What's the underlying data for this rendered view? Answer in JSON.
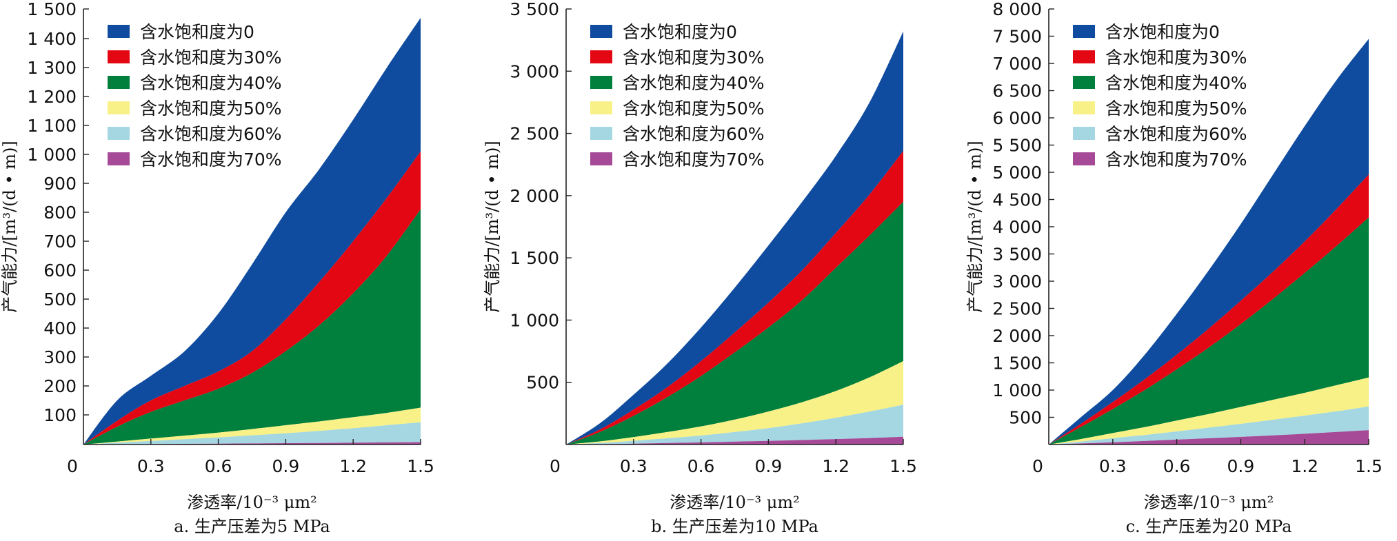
{
  "colors": {
    "series": [
      "#0f4b9e",
      "#e30613",
      "#007f3d",
      "#f7f187",
      "#a4d7e1",
      "#a64a97"
    ]
  },
  "chart_data": [
    {
      "type": "area",
      "caption": "a. 生产压差为5 MPa",
      "xlabel": "渗透率/10⁻³ μm²",
      "ylabel": "产气能力/[m³/(d • m)]",
      "xlim": [
        0,
        1.5
      ],
      "x_ticks": [
        0,
        0.3,
        0.6,
        0.9,
        1.2,
        1.5
      ],
      "x_tick_labels": [
        "0",
        "0.3",
        "0.6",
        "0.9",
        "1.2",
        "1.5"
      ],
      "ylim": [
        0,
        1500
      ],
      "y_scale": "piecewise-linear",
      "y_ticks": [
        100,
        200,
        300,
        400,
        500,
        600,
        700,
        800,
        900,
        1000,
        1100,
        1200,
        1300,
        1400,
        1500
      ],
      "y_tick_labels": [
        "100",
        "200",
        "300",
        "400",
        "500",
        "600",
        "700",
        "800",
        "900",
        "1 000",
        "1 100",
        "1 200",
        "1 300",
        "1 400",
        "1 500"
      ],
      "legend_position": "top-left",
      "grid": false,
      "x": [
        0,
        0.15,
        0.3,
        0.45,
        0.6,
        0.75,
        0.9,
        1.05,
        1.2,
        1.35,
        1.5
      ],
      "series": [
        {
          "name": "含水饱和度为0",
          "values": [
            0,
            150,
            235,
            320,
            450,
            620,
            800,
            950,
            1120,
            1300,
            1470
          ]
        },
        {
          "name": "含水饱和度为30%",
          "values": [
            0,
            80,
            150,
            200,
            250,
            320,
            430,
            560,
            700,
            850,
            1010
          ]
        },
        {
          "name": "含水饱和度为40%",
          "values": [
            0,
            60,
            110,
            150,
            190,
            245,
            320,
            410,
            520,
            650,
            810
          ]
        },
        {
          "name": "含水饱和度为50%",
          "values": [
            0,
            10,
            20,
            30,
            40,
            52,
            65,
            78,
            92,
            107,
            125
          ]
        },
        {
          "name": "含水饱和度为60%",
          "values": [
            0,
            6,
            12,
            18,
            24,
            31,
            38,
            46,
            55,
            65,
            75
          ]
        },
        {
          "name": "含水饱和度为70%",
          "values": [
            0,
            0.8,
            1.5,
            2.3,
            3,
            3.8,
            4.6,
            5.4,
            6.2,
            7.1,
            8
          ]
        }
      ]
    },
    {
      "type": "area",
      "caption": "b. 生产压差为10 MPa",
      "xlabel": "渗透率/10⁻³ μm²",
      "ylabel": "产气能力/[m³/(d • m)]",
      "xlim": [
        0,
        1.5
      ],
      "x_ticks": [
        0,
        0.3,
        0.6,
        0.9,
        1.2,
        1.5
      ],
      "x_tick_labels": [
        "0",
        "0.3",
        "0.6",
        "0.9",
        "1.2",
        "1.5"
      ],
      "ylim": [
        0,
        3500
      ],
      "y_scale": "linear",
      "y_ticks": [
        500,
        1000,
        1500,
        2000,
        2500,
        3000,
        3500
      ],
      "y_tick_labels": [
        "500",
        "1 000",
        "1 500",
        "2 000",
        "2 500",
        "3 000",
        "3 500"
      ],
      "legend_position": "top-left",
      "grid": false,
      "x": [
        0,
        0.15,
        0.3,
        0.45,
        0.6,
        0.75,
        0.9,
        1.05,
        1.2,
        1.35,
        1.5
      ],
      "series": [
        {
          "name": "含水饱和度为0",
          "values": [
            0,
            170,
            400,
            650,
            940,
            1260,
            1600,
            1950,
            2320,
            2750,
            3320
          ]
        },
        {
          "name": "含水饱和度为30%",
          "values": [
            0,
            120,
            280,
            460,
            670,
            900,
            1140,
            1400,
            1700,
            2010,
            2360
          ]
        },
        {
          "name": "含水饱和度为40%",
          "values": [
            0,
            100,
            230,
            380,
            550,
            740,
            940,
            1160,
            1420,
            1680,
            1950
          ]
        },
        {
          "name": "含水饱和度为50%",
          "values": [
            0,
            25,
            60,
            100,
            145,
            200,
            265,
            340,
            430,
            540,
            670
          ]
        },
        {
          "name": "含水饱和度为60%",
          "values": [
            0,
            12,
            30,
            50,
            72,
            100,
            132,
            170,
            215,
            265,
            320
          ]
        },
        {
          "name": "含水饱和度为70%",
          "values": [
            0,
            3,
            7,
            12,
            17,
            23,
            29,
            36,
            44,
            52,
            62
          ]
        }
      ]
    },
    {
      "type": "area",
      "caption": "c. 生产压差为20 MPa",
      "xlabel": "渗透率/10⁻³ μm²",
      "ylabel": "产气能力/[m³/(d • m)]",
      "xlim": [
        0,
        1.5
      ],
      "x_ticks": [
        0,
        0.3,
        0.6,
        0.9,
        1.2,
        1.5
      ],
      "x_tick_labels": [
        "0",
        "0.3",
        "0.6",
        "0.9",
        "1.2",
        "1.5"
      ],
      "ylim": [
        0,
        8000
      ],
      "y_scale": "linear",
      "y_ticks": [
        500,
        1000,
        1500,
        2000,
        2500,
        3000,
        3500,
        4000,
        4500,
        5000,
        5500,
        6000,
        6500,
        7000,
        7500,
        8000
      ],
      "y_tick_labels": [
        "500",
        "1 000",
        "1 500",
        "2 000",
        "2 500",
        "3 000",
        "3 500",
        "4 000",
        "4 500",
        "5 000",
        "5 500",
        "6 000",
        "6 500",
        "7 000",
        "7 500",
        "8 000"
      ],
      "legend_position": "top-left",
      "grid": false,
      "x": [
        0,
        0.15,
        0.3,
        0.45,
        0.6,
        0.75,
        0.9,
        1.05,
        1.2,
        1.35,
        1.5
      ],
      "series": [
        {
          "name": "含水饱和度为0",
          "values": [
            0,
            500,
            1000,
            1650,
            2400,
            3200,
            4050,
            4950,
            5850,
            6700,
            7450
          ]
        },
        {
          "name": "含水饱和度为30%",
          "values": [
            0,
            380,
            780,
            1200,
            1650,
            2130,
            2640,
            3170,
            3730,
            4330,
            4960
          ]
        },
        {
          "name": "含水饱和度为40%",
          "values": [
            0,
            320,
            650,
            1000,
            1380,
            1780,
            2210,
            2670,
            3150,
            3650,
            4170
          ]
        },
        {
          "name": "含水饱和度为50%",
          "values": [
            0,
            100,
            210,
            320,
            440,
            560,
            690,
            820,
            950,
            1090,
            1230
          ]
        },
        {
          "name": "含水饱和度为60%",
          "values": [
            0,
            55,
            115,
            175,
            240,
            310,
            380,
            455,
            530,
            610,
            700
          ]
        },
        {
          "name": "含水饱和度为70%",
          "values": [
            0,
            20,
            42,
            65,
            90,
            115,
            140,
            168,
            198,
            230,
            265
          ]
        }
      ]
    }
  ]
}
